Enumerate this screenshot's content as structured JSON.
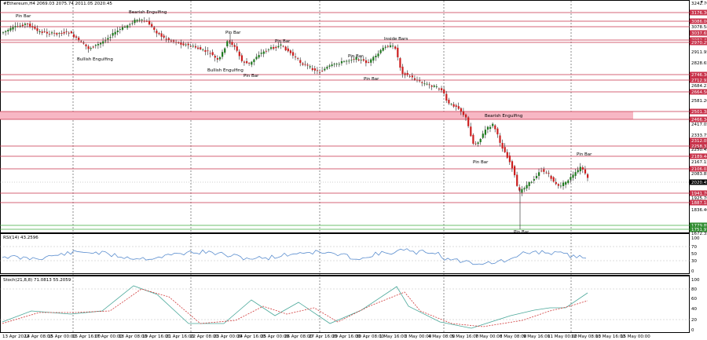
{
  "header": {
    "symbol_line": "#Ethereum,H4  2069.03 2075.74 2011.05 2020.45",
    "rsi_label": "RSI(14) 43.2596",
    "stoch_label": "Stoch(21,8,8) 71.0813 55.2059"
  },
  "price_axis": {
    "labels": [
      "3242.70",
      "3176.36",
      "3086.06",
      "3078.58",
      "3037.65",
      "2982.42",
      "2970.29",
      "2911.95",
      "2828.65",
      "2746.36",
      "2712.92",
      "2684.23",
      "2664.50",
      "2581.20",
      "2501.38",
      "2466.34",
      "2417.05",
      "2333.75",
      "2312.05",
      "2258.32",
      "2250.45",
      "2189.44",
      "2167.15",
      "2106.02",
      "2083.85",
      "2020.45",
      "1941.76",
      "1925.70",
      "1887.18",
      "1836.40",
      "1779.89",
      "1751.97",
      "1672.35"
    ],
    "highlighted": {
      "red": [
        "3176.36",
        "3086.06",
        "3037.65",
        "2982.42",
        "2970.29",
        "2746.36",
        "2712.92",
        "2664.50",
        "2501.38",
        "2466.34",
        "2312.05",
        "2258.32",
        "2189.44",
        "2106.02",
        "1941.76",
        "1887.18"
      ],
      "black": [
        "2020.45"
      ],
      "green": [
        "1779.89",
        "1751.97"
      ]
    }
  },
  "rsi_axis": {
    "labels": [
      "100",
      "70",
      "50",
      "30",
      "0"
    ]
  },
  "stoch_axis": {
    "labels": [
      "100",
      "80",
      "60",
      "40",
      "20",
      "0"
    ]
  },
  "time_axis": {
    "labels": [
      "13 Apr 2022",
      "14 Apr 08:00",
      "15 Apr 00:00",
      "15 Apr 16:00",
      "17 Apr 00:00",
      "18 Apr 08:00",
      "19 Apr 16:00",
      "21 Apr 16:00",
      "22 Apr 08:00",
      "23 Apr 00:00",
      "24 Apr 16:00",
      "25 Apr 00:00",
      "26 Apr 08:00",
      "27 Apr 16:00",
      "29 Apr 16:00",
      "30 Apr 08:00",
      "1 May 16:00",
      "3 May 00:00",
      "4 May 08:00",
      "5 May 16:00",
      "7 May 00:00",
      "8 May 08:00",
      "9 May 16:00",
      "11 May 00:00",
      "12 May 08:00",
      "13 May 16:00",
      "15 May 00:00"
    ]
  },
  "annotations": [
    "Pin Bar",
    "Bearish Engulfing",
    "Bullish Engulfing",
    "Pin Bar",
    "Bullish Engulfing",
    "Pin Bar",
    "Pin Bar",
    "Inside Bars",
    "Pin Bar",
    "Pin Bar",
    "Bearish Engulfing",
    "Pin Bar",
    "Pin Bar",
    "Pin Bar"
  ],
  "colors": {
    "bull": "#1f7a1f",
    "bear": "#cc1f1f",
    "level_line": "#c8324a",
    "zone_fill": "#f7b7c4",
    "green_line": "#3fae3f",
    "rsi_line": "#5b8ecf",
    "stoch_main": "#4aa89a",
    "stoch_signal": "#d03a3a",
    "grid_dash": "#444444",
    "panel_border": "#000000"
  }
}
